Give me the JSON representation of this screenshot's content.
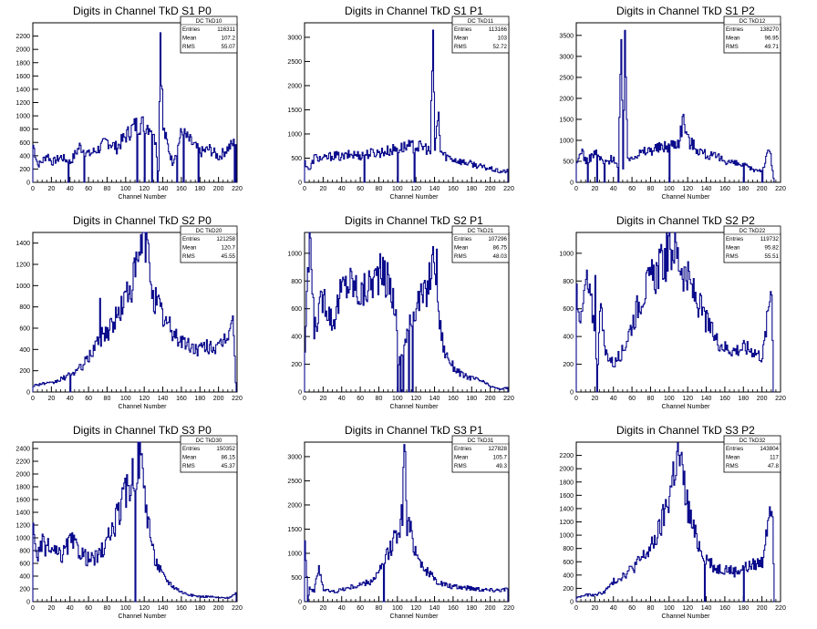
{
  "chart_data": [
    {
      "type": "histogram",
      "title": "Digits in Channel TkD S1 P0",
      "xlabel": "Channel Number",
      "ylabel": "",
      "xlim": [
        0,
        220
      ],
      "ylim": [
        0,
        2400
      ],
      "yticks": [
        0,
        200,
        400,
        600,
        800,
        1000,
        1200,
        1400,
        1600,
        1800,
        2000,
        2200
      ],
      "stats": {
        "name": "DC_TkD10",
        "entries": "116311",
        "mean": "107.2",
        "rms": "55.07"
      },
      "profile": [
        [
          0,
          560
        ],
        [
          5,
          260
        ],
        [
          10,
          320
        ],
        [
          15,
          420
        ],
        [
          20,
          300
        ],
        [
          30,
          380
        ],
        [
          40,
          300
        ],
        [
          50,
          540
        ],
        [
          60,
          420
        ],
        [
          70,
          500
        ],
        [
          80,
          620
        ],
        [
          90,
          520
        ],
        [
          100,
          700
        ],
        [
          110,
          860
        ],
        [
          120,
          880
        ],
        [
          130,
          820
        ],
        [
          135,
          200
        ],
        [
          137,
          2250
        ],
        [
          140,
          800
        ],
        [
          150,
          300
        ],
        [
          160,
          750
        ],
        [
          170,
          600
        ],
        [
          180,
          450
        ],
        [
          190,
          500
        ],
        [
          200,
          380
        ],
        [
          210,
          520
        ],
        [
          218,
          600
        ]
      ],
      "spikes": [
        [
          137,
          2250
        ]
      ],
      "drops": [
        [
          38,
          0
        ],
        [
          55,
          0
        ],
        [
          112,
          0
        ],
        [
          120,
          0
        ],
        [
          128,
          0
        ],
        [
          134,
          0
        ],
        [
          155,
          0
        ],
        [
          162,
          0
        ],
        [
          178,
          0
        ],
        [
          217,
          0
        ]
      ]
    },
    {
      "type": "histogram",
      "title": "Digits in Channel TkD S1 P1",
      "xlabel": "Channel Number",
      "ylabel": "",
      "xlim": [
        0,
        220
      ],
      "ylim": [
        0,
        3300
      ],
      "yticks": [
        0,
        500,
        1000,
        1500,
        2000,
        2500,
        3000
      ],
      "stats": {
        "name": "DC_TkD11",
        "entries": "113166",
        "mean": "103",
        "rms": "52.72"
      },
      "profile": [
        [
          0,
          420
        ],
        [
          5,
          240
        ],
        [
          10,
          520
        ],
        [
          20,
          480
        ],
        [
          30,
          560
        ],
        [
          40,
          520
        ],
        [
          50,
          580
        ],
        [
          60,
          560
        ],
        [
          70,
          600
        ],
        [
          80,
          620
        ],
        [
          90,
          650
        ],
        [
          100,
          700
        ],
        [
          110,
          740
        ],
        [
          120,
          740
        ],
        [
          130,
          720
        ],
        [
          135,
          620
        ],
        [
          138,
          3150
        ],
        [
          140,
          700
        ],
        [
          144,
          1450
        ],
        [
          146,
          650
        ],
        [
          150,
          560
        ],
        [
          160,
          480
        ],
        [
          170,
          420
        ],
        [
          180,
          380
        ],
        [
          190,
          320
        ],
        [
          200,
          280
        ],
        [
          210,
          220
        ],
        [
          218,
          230
        ]
      ],
      "spikes": [
        [
          138,
          3150
        ],
        [
          144,
          1450
        ]
      ],
      "drops": [
        [
          64,
          0
        ],
        [
          100,
          0
        ],
        [
          118,
          0
        ]
      ]
    },
    {
      "type": "histogram",
      "title": "Digits in Channel TkD S1 P2",
      "xlabel": "Channel Number",
      "ylabel": "",
      "xlim": [
        0,
        220
      ],
      "ylim": [
        0,
        3800
      ],
      "yticks": [
        0,
        500,
        1000,
        1500,
        2000,
        2500,
        3000,
        3500
      ],
      "stats": {
        "name": "DC_TkD12",
        "entries": "138270",
        "mean": "96.95",
        "rms": "49.71"
      },
      "profile": [
        [
          0,
          400
        ],
        [
          5,
          800
        ],
        [
          10,
          500
        ],
        [
          20,
          700
        ],
        [
          30,
          450
        ],
        [
          40,
          600
        ],
        [
          45,
          300
        ],
        [
          48,
          3400
        ],
        [
          50,
          350
        ],
        [
          52,
          3620
        ],
        [
          55,
          500
        ],
        [
          60,
          650
        ],
        [
          70,
          700
        ],
        [
          80,
          780
        ],
        [
          90,
          820
        ],
        [
          100,
          880
        ],
        [
          110,
          980
        ],
        [
          115,
          1550
        ],
        [
          120,
          1000
        ],
        [
          130,
          800
        ],
        [
          140,
          650
        ],
        [
          150,
          600
        ],
        [
          160,
          520
        ],
        [
          170,
          450
        ],
        [
          180,
          400
        ],
        [
          190,
          300
        ],
        [
          200,
          300
        ],
        [
          208,
          800
        ],
        [
          212,
          100
        ]
      ],
      "spikes": [
        [
          48,
          3400
        ],
        [
          52,
          3620
        ]
      ],
      "drops": [
        [
          12,
          0
        ],
        [
          22,
          0
        ],
        [
          30,
          0
        ],
        [
          45,
          0
        ],
        [
          100,
          0
        ],
        [
          180,
          0
        ],
        [
          200,
          0
        ]
      ]
    },
    {
      "type": "histogram",
      "title": "Digits in Channel TkD S2 P0",
      "xlabel": "Channel Number",
      "ylabel": "",
      "xlim": [
        0,
        220
      ],
      "ylim": [
        0,
        1500
      ],
      "yticks": [
        0,
        200,
        400,
        600,
        800,
        1000,
        1200,
        1400
      ],
      "stats": {
        "name": "DC_TkD20",
        "entries": "121258",
        "mean": "120.7",
        "rms": "45.55"
      },
      "profile": [
        [
          0,
          60
        ],
        [
          10,
          80
        ],
        [
          20,
          80
        ],
        [
          30,
          120
        ],
        [
          40,
          160
        ],
        [
          50,
          220
        ],
        [
          60,
          320
        ],
        [
          70,
          500
        ],
        [
          80,
          580
        ],
        [
          90,
          700
        ],
        [
          100,
          900
        ],
        [
          110,
          1100
        ],
        [
          115,
          1320
        ],
        [
          120,
          1480
        ],
        [
          125,
          1200
        ],
        [
          130,
          900
        ],
        [
          140,
          700
        ],
        [
          150,
          560
        ],
        [
          160,
          480
        ],
        [
          170,
          420
        ],
        [
          180,
          400
        ],
        [
          190,
          440
        ],
        [
          200,
          400
        ],
        [
          210,
          560
        ],
        [
          215,
          700
        ],
        [
          218,
          100
        ]
      ],
      "spikes": [
        [
          72,
          880
        ],
        [
          116,
          1480
        ]
      ],
      "drops": [
        [
          40,
          0
        ]
      ]
    },
    {
      "type": "histogram",
      "title": "Digits in Channel TkD S2 P1",
      "xlabel": "Channel Number",
      "ylabel": "",
      "xlim": [
        0,
        220
      ],
      "ylim": [
        0,
        1150
      ],
      "yticks": [
        0,
        200,
        400,
        600,
        800,
        1000
      ],
      "stats": {
        "name": "DC_TkD21",
        "entries": "107296",
        "mean": "86.75",
        "rms": "48.03"
      },
      "profile": [
        [
          0,
          300
        ],
        [
          5,
          1100
        ],
        [
          10,
          450
        ],
        [
          20,
          700
        ],
        [
          30,
          500
        ],
        [
          40,
          750
        ],
        [
          50,
          800
        ],
        [
          60,
          700
        ],
        [
          70,
          780
        ],
        [
          80,
          850
        ],
        [
          90,
          800
        ],
        [
          98,
          600
        ],
        [
          100,
          200
        ],
        [
          110,
          400
        ],
        [
          120,
          650
        ],
        [
          130,
          700
        ],
        [
          140,
          1000
        ],
        [
          145,
          500
        ],
        [
          150,
          300
        ],
        [
          160,
          180
        ],
        [
          170,
          120
        ],
        [
          180,
          100
        ],
        [
          190,
          80
        ],
        [
          200,
          40
        ],
        [
          210,
          20
        ],
        [
          218,
          30
        ]
      ],
      "spikes": [
        [
          6,
          1110
        ],
        [
          142,
          1030
        ]
      ],
      "drops": [
        [
          100,
          0
        ],
        [
          103,
          0
        ],
        [
          106,
          0
        ],
        [
          112,
          0
        ],
        [
          116,
          0
        ]
      ]
    },
    {
      "type": "histogram",
      "title": "Digits in Channel TkD S2 P2",
      "xlabel": "Channel Number",
      "ylabel": "",
      "xlim": [
        0,
        220
      ],
      "ylim": [
        0,
        1150
      ],
      "yticks": [
        0,
        200,
        400,
        600,
        800,
        1000
      ],
      "stats": {
        "name": "DC_TkD22",
        "entries": "119732",
        "mean": "95.82",
        "rms": "55.51"
      },
      "profile": [
        [
          0,
          750
        ],
        [
          5,
          500
        ],
        [
          10,
          800
        ],
        [
          15,
          650
        ],
        [
          20,
          450
        ],
        [
          22,
          0
        ],
        [
          25,
          700
        ],
        [
          30,
          300
        ],
        [
          40,
          200
        ],
        [
          50,
          300
        ],
        [
          60,
          500
        ],
        [
          70,
          700
        ],
        [
          80,
          800
        ],
        [
          90,
          900
        ],
        [
          100,
          1000
        ],
        [
          105,
          1060
        ],
        [
          110,
          950
        ],
        [
          120,
          800
        ],
        [
          130,
          650
        ],
        [
          140,
          500
        ],
        [
          150,
          380
        ],
        [
          160,
          320
        ],
        [
          170,
          300
        ],
        [
          180,
          320
        ],
        [
          190,
          300
        ],
        [
          200,
          250
        ],
        [
          205,
          500
        ],
        [
          210,
          820
        ],
        [
          212,
          0
        ]
      ],
      "spikes": [
        [
          20,
          840
        ]
      ],
      "drops": [
        [
          22,
          0
        ],
        [
          212,
          0
        ]
      ]
    },
    {
      "type": "histogram",
      "title": "Digits in Channel TkD S3 P0",
      "xlabel": "Channel Number",
      "ylabel": "",
      "xlim": [
        0,
        220
      ],
      "ylim": [
        0,
        2500
      ],
      "yticks": [
        0,
        200,
        400,
        600,
        800,
        1000,
        1200,
        1400,
        1600,
        1800,
        2000,
        2200,
        2400
      ],
      "stats": {
        "name": "DC_TkD30",
        "entries": "150352",
        "mean": "86.15",
        "rms": "45.37"
      },
      "profile": [
        [
          0,
          1100
        ],
        [
          5,
          700
        ],
        [
          10,
          900
        ],
        [
          20,
          800
        ],
        [
          30,
          700
        ],
        [
          40,
          950
        ],
        [
          50,
          800
        ],
        [
          60,
          650
        ],
        [
          70,
          700
        ],
        [
          80,
          950
        ],
        [
          90,
          1300
        ],
        [
          100,
          1700
        ],
        [
          105,
          1900
        ],
        [
          110,
          2100
        ],
        [
          115,
          2300
        ],
        [
          120,
          1700
        ],
        [
          125,
          1200
        ],
        [
          130,
          700
        ],
        [
          140,
          400
        ],
        [
          150,
          250
        ],
        [
          160,
          150
        ],
        [
          170,
          100
        ],
        [
          180,
          80
        ],
        [
          190,
          80
        ],
        [
          200,
          60
        ],
        [
          210,
          60
        ],
        [
          218,
          120
        ]
      ],
      "spikes": [
        [
          116,
          2300
        ]
      ],
      "drops": [
        [
          110,
          0
        ]
      ]
    },
    {
      "type": "histogram",
      "title": "Digits in Channel TkD S3 P1",
      "xlabel": "Channel Number",
      "ylabel": "",
      "xlim": [
        0,
        220
      ],
      "ylim": [
        0,
        3300
      ],
      "yticks": [
        0,
        500,
        1000,
        1500,
        2000,
        2500,
        3000
      ],
      "stats": {
        "name": "DC_TkD31",
        "entries": "127828",
        "mean": "105.7",
        "rms": "49.3"
      },
      "profile": [
        [
          0,
          1500
        ],
        [
          3,
          0
        ],
        [
          5,
          300
        ],
        [
          10,
          200
        ],
        [
          15,
          750
        ],
        [
          20,
          250
        ],
        [
          30,
          200
        ],
        [
          40,
          250
        ],
        [
          50,
          300
        ],
        [
          60,
          350
        ],
        [
          70,
          400
        ],
        [
          80,
          600
        ],
        [
          90,
          1000
        ],
        [
          100,
          1500
        ],
        [
          105,
          1800
        ],
        [
          107,
          3250
        ],
        [
          110,
          1600
        ],
        [
          115,
          1400
        ],
        [
          120,
          1000
        ],
        [
          130,
          650
        ],
        [
          140,
          450
        ],
        [
          150,
          350
        ],
        [
          160,
          300
        ],
        [
          170,
          300
        ],
        [
          180,
          280
        ],
        [
          190,
          260
        ],
        [
          200,
          240
        ],
        [
          210,
          250
        ],
        [
          218,
          260
        ]
      ],
      "spikes": [
        [
          107,
          3250
        ]
      ],
      "drops": [
        [
          3,
          0
        ],
        [
          85,
          0
        ]
      ]
    },
    {
      "type": "histogram",
      "title": "Digits in Channel TkD S3 P2",
      "xlabel": "Channel Number",
      "ylabel": "",
      "xlim": [
        0,
        220
      ],
      "ylim": [
        0,
        2400
      ],
      "yticks": [
        0,
        200,
        400,
        600,
        800,
        1000,
        1200,
        1400,
        1600,
        1800,
        2000,
        2200
      ],
      "stats": {
        "name": "DC_TkD32",
        "entries": "143804",
        "mean": "117",
        "rms": "47.8"
      },
      "profile": [
        [
          0,
          60
        ],
        [
          10,
          100
        ],
        [
          20,
          100
        ],
        [
          30,
          150
        ],
        [
          40,
          300
        ],
        [
          50,
          400
        ],
        [
          60,
          500
        ],
        [
          70,
          650
        ],
        [
          80,
          800
        ],
        [
          90,
          1100
        ],
        [
          100,
          1600
        ],
        [
          105,
          2000
        ],
        [
          110,
          2200
        ],
        [
          115,
          1800
        ],
        [
          120,
          1400
        ],
        [
          125,
          1100
        ],
        [
          130,
          900
        ],
        [
          140,
          650
        ],
        [
          150,
          500
        ],
        [
          160,
          500
        ],
        [
          170,
          450
        ],
        [
          180,
          500
        ],
        [
          190,
          550
        ],
        [
          200,
          600
        ],
        [
          205,
          1200
        ],
        [
          210,
          1650
        ],
        [
          213,
          0
        ]
      ],
      "spikes": [
        [
          108,
          2260
        ]
      ],
      "drops": [
        [
          138,
          0
        ],
        [
          180,
          0
        ],
        [
          213,
          0
        ]
      ]
    }
  ],
  "stats_labels": {
    "entries": "Entries",
    "mean": "Mean",
    "rms": "RMS"
  }
}
